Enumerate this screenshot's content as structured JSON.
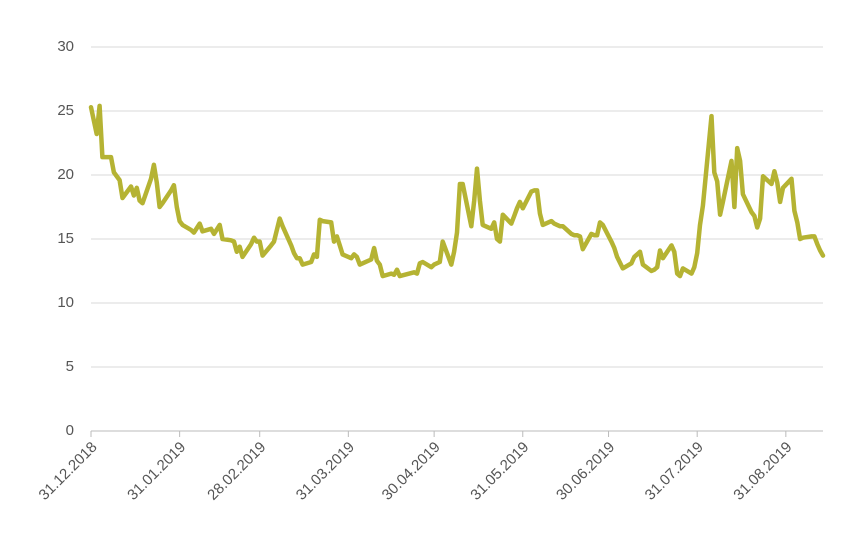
{
  "chart_data": {
    "type": "line",
    "x": [
      "31.12.2018",
      "02.01.2019",
      "03.01.2019",
      "04.01.2019",
      "07.01.2019",
      "08.01.2019",
      "10.01.2019",
      "11.01.2019",
      "14.01.2019",
      "15.01.2019",
      "16.01.2019",
      "17.01.2019",
      "18.01.2019",
      "21.01.2019",
      "22.01.2019",
      "23.01.2019",
      "24.01.2019",
      "25.01.2019",
      "28.01.2019",
      "29.01.2019",
      "30.01.2019",
      "31.01.2019",
      "01.02.2019",
      "04.02.2019",
      "05.02.2019",
      "07.02.2019",
      "08.02.2019",
      "11.02.2019",
      "12.02.2019",
      "14.02.2019",
      "15.02.2019",
      "18.02.2019",
      "19.02.2019",
      "20.02.2019",
      "21.02.2019",
      "22.02.2019",
      "25.02.2019",
      "26.02.2019",
      "27.02.2019",
      "28.02.2019",
      "01.03.2019",
      "04.03.2019",
      "05.03.2019",
      "07.03.2019",
      "08.03.2019",
      "11.03.2019",
      "12.03.2019",
      "13.03.2019",
      "14.03.2019",
      "15.03.2019",
      "18.03.2019",
      "19.03.2019",
      "20.03.2019",
      "21.03.2019",
      "22.03.2019",
      "25.03.2019",
      "26.03.2019",
      "27.03.2019",
      "28.03.2019",
      "29.03.2019",
      "01.04.2019",
      "02.04.2019",
      "03.04.2019",
      "04.04.2019",
      "05.04.2019",
      "08.04.2019",
      "09.04.2019",
      "10.04.2019",
      "11.04.2019",
      "12.04.2019",
      "15.04.2019",
      "16.04.2019",
      "17.04.2019",
      "18.04.2019",
      "23.04.2019",
      "24.04.2019",
      "25.04.2019",
      "26.04.2019",
      "29.04.2019",
      "30.04.2019",
      "02.05.2019",
      "03.05.2019",
      "06.05.2019",
      "07.05.2019",
      "08.05.2019",
      "09.05.2019",
      "10.05.2019",
      "13.05.2019",
      "14.05.2019",
      "15.05.2019",
      "16.05.2019",
      "17.05.2019",
      "20.05.2019",
      "21.05.2019",
      "22.05.2019",
      "23.05.2019",
      "24.05.2019",
      "27.05.2019",
      "28.05.2019",
      "29.05.2019",
      "30.05.2019",
      "31.05.2019",
      "03.06.2019",
      "04.06.2019",
      "05.06.2019",
      "06.06.2019",
      "07.06.2019",
      "10.06.2019",
      "11.06.2019",
      "12.06.2019",
      "13.06.2019",
      "14.06.2019",
      "17.06.2019",
      "18.06.2019",
      "19.06.2019",
      "20.06.2019",
      "21.06.2019",
      "24.06.2019",
      "25.06.2019",
      "26.06.2019",
      "27.06.2019",
      "28.06.2019",
      "01.07.2019",
      "02.07.2019",
      "03.07.2019",
      "05.07.2019",
      "08.07.2019",
      "09.07.2019",
      "10.07.2019",
      "11.07.2019",
      "12.07.2019",
      "15.07.2019",
      "16.07.2019",
      "17.07.2019",
      "18.07.2019",
      "19.07.2019",
      "22.07.2019",
      "23.07.2019",
      "24.07.2019",
      "25.07.2019",
      "26.07.2019",
      "29.07.2019",
      "30.07.2019",
      "31.07.2019",
      "01.08.2019",
      "02.08.2019",
      "05.08.2019",
      "06.08.2019",
      "07.08.2019",
      "08.08.2019",
      "09.08.2019",
      "12.08.2019",
      "13.08.2019",
      "14.08.2019",
      "15.08.2019",
      "16.08.2019",
      "19.08.2019",
      "20.08.2019",
      "21.08.2019",
      "22.08.2019",
      "23.08.2019",
      "26.08.2019",
      "27.08.2019",
      "28.08.2019",
      "29.08.2019",
      "30.08.2019",
      "02.09.2019",
      "03.09.2019",
      "04.09.2019",
      "05.09.2019",
      "06.09.2019",
      "09.09.2019",
      "10.09.2019",
      "11.09.2019",
      "12.09.2019",
      "13.09.2019"
    ],
    "series": [
      {
        "color": "#b5b333",
        "values": [
          25.3,
          23.2,
          25.4,
          21.4,
          21.4,
          20.2,
          19.6,
          18.2,
          19.1,
          18.4,
          19.0,
          18.0,
          17.8,
          19.7,
          20.8,
          19.4,
          17.5,
          17.8,
          18.8,
          19.2,
          17.5,
          16.4,
          16.1,
          15.7,
          15.5,
          16.2,
          15.6,
          15.8,
          15.4,
          16.1,
          15.0,
          14.9,
          14.8,
          14.0,
          14.4,
          13.6,
          14.6,
          15.1,
          14.8,
          14.8,
          13.7,
          14.5,
          14.8,
          16.6,
          16.0,
          14.5,
          13.9,
          13.5,
          13.5,
          13.0,
          13.2,
          13.8,
          13.6,
          16.5,
          16.4,
          16.3,
          14.8,
          15.2,
          14.5,
          13.8,
          13.5,
          13.8,
          13.6,
          13.0,
          13.1,
          13.4,
          14.3,
          13.3,
          13.0,
          12.1,
          12.3,
          12.2,
          12.6,
          12.1,
          12.4,
          12.3,
          13.1,
          13.2,
          12.8,
          13.0,
          13.2,
          14.8,
          13.0,
          14.0,
          15.5,
          19.3,
          19.3,
          16.0,
          18.0,
          20.5,
          18.0,
          16.1,
          15.8,
          16.3,
          15.0,
          14.8,
          16.9,
          16.2,
          16.8,
          17.4,
          17.9,
          17.4,
          18.7,
          18.8,
          18.8,
          17.0,
          16.1,
          16.4,
          16.2,
          16.1,
          16.0,
          16.0,
          15.4,
          15.3,
          15.3,
          15.2,
          14.2,
          15.4,
          15.3,
          15.3,
          16.3,
          16.1,
          14.8,
          14.3,
          13.6,
          12.7,
          13.1,
          13.6,
          13.8,
          14.0,
          13.0,
          12.5,
          12.6,
          12.8,
          14.1,
          13.5,
          14.5,
          14.0,
          12.3,
          12.1,
          12.7,
          12.3,
          12.8,
          13.9,
          16.1,
          17.6,
          24.6,
          20.2,
          19.5,
          16.9,
          17.9,
          21.1,
          17.5,
          22.1,
          21.1,
          18.5,
          17.1,
          16.8,
          15.9,
          16.6,
          19.9,
          19.3,
          20.3,
          19.4,
          17.9,
          19.0,
          19.7,
          17.2,
          16.3,
          15.0,
          15.1,
          15.2,
          15.2,
          14.6,
          14.1,
          13.7
        ]
      }
    ],
    "xlim": [
      "31.12.2018",
      "13.09.2019"
    ],
    "xticks": [
      "31.12.2018",
      "31.01.2019",
      "28.02.2019",
      "31.03.2019",
      "30.04.2019",
      "31.05.2019",
      "30.06.2019",
      "31.07.2019",
      "31.08.2019"
    ],
    "ylim": [
      0,
      30
    ],
    "yticks": [
      0,
      5,
      10,
      15,
      20,
      25,
      30
    ],
    "grid": true
  }
}
